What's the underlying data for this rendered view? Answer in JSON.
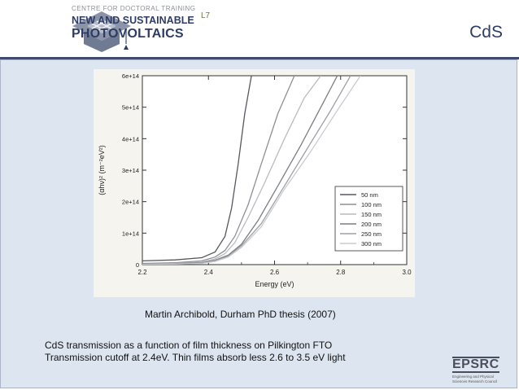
{
  "logo": {
    "line1": "CENTRE FOR DOCTORAL TRAINING",
    "line2": "NEW AND SUSTAINABLE",
    "line3": "PHOTOVOLTAICS"
  },
  "slide_number": "L7",
  "slide_title": "CdS",
  "caption": "Martin Archibold, Durham PhD thesis (2007)",
  "body_lines": [
    "CdS transmission as a function of film thickness on Pilkington FTO",
    "Transmission cutoff at 2.4eV. Thin films absorb less 2.6 to 3.5 eV light"
  ],
  "epsrc": {
    "name": "EPSRC",
    "subtitle": "Engineering and Physical Sciences Research Council"
  },
  "chart_data": {
    "type": "line",
    "xlabel": "Energy (eV)",
    "ylabel": "(αhν)² (m⁻²eV²)",
    "xlim": [
      2.2,
      3.0
    ],
    "ylim": [
      0,
      600000000000000.0
    ],
    "xticks": [
      2.2,
      2.4,
      2.6,
      2.8,
      3.0
    ],
    "xtick_labels": [
      "2.2",
      "2.4",
      "2.6",
      "2.8",
      "3.0"
    ],
    "yticks": [
      0,
      100000000000000.0,
      200000000000000.0,
      300000000000000.0,
      400000000000000.0,
      500000000000000.0,
      600000000000000.0
    ],
    "ytick_labels": [
      "0",
      "1e+14",
      "2e+14",
      "3e+14",
      "4e+14",
      "5e+14",
      "6e+14"
    ],
    "legend_position": "bottom-right",
    "series": [
      {
        "name": "50 nm",
        "color": "#55585e",
        "x": [
          2.2,
          2.3,
          2.38,
          2.42,
          2.45,
          2.47,
          2.49,
          2.51,
          2.53
        ],
        "y": [
          12000000000000.0,
          15000000000000.0,
          22000000000000.0,
          40000000000000.0,
          90000000000000.0,
          180000000000000.0,
          320000000000000.0,
          480000000000000.0,
          600000000000000.0
        ]
      },
      {
        "name": "100 nm",
        "color": "#8e9096",
        "x": [
          2.2,
          2.3,
          2.38,
          2.42,
          2.45,
          2.48,
          2.52,
          2.56,
          2.61,
          2.66
        ],
        "y": [
          4000000000000.0,
          6000000000000.0,
          12000000000000.0,
          24000000000000.0,
          45000000000000.0,
          90000000000000.0,
          190000000000000.0,
          320000000000000.0,
          480000000000000.0,
          600000000000000.0
        ]
      },
      {
        "name": "150 nm",
        "color": "#b9bbbf",
        "x": [
          2.2,
          2.3,
          2.38,
          2.42,
          2.45,
          2.48,
          2.52,
          2.57,
          2.63,
          2.69,
          2.74
        ],
        "y": [
          2000000000000.0,
          4000000000000.0,
          8000000000000.0,
          18000000000000.0,
          35000000000000.0,
          70000000000000.0,
          150000000000000.0,
          260000000000000.0,
          400000000000000.0,
          530000000000000.0,
          600000000000000.0
        ]
      },
      {
        "name": "200 nm",
        "color": "#7a7d82",
        "x": [
          2.2,
          2.3,
          2.38,
          2.42,
          2.46,
          2.5,
          2.55,
          2.61,
          2.68,
          2.74,
          2.79
        ],
        "y": [
          2000000000000.0,
          3000000000000.0,
          6000000000000.0,
          14000000000000.0,
          30000000000000.0,
          65000000000000.0,
          140000000000000.0,
          250000000000000.0,
          380000000000000.0,
          500000000000000.0,
          600000000000000.0
        ]
      },
      {
        "name": "250 nm",
        "color": "#9ea0a5",
        "x": [
          2.2,
          2.3,
          2.38,
          2.42,
          2.46,
          2.5,
          2.56,
          2.63,
          2.7,
          2.77,
          2.83
        ],
        "y": [
          1000000000000.0,
          2000000000000.0,
          5000000000000.0,
          12000000000000.0,
          27000000000000.0,
          60000000000000.0,
          130000000000000.0,
          250000000000000.0,
          370000000000000.0,
          490000000000000.0,
          600000000000000.0
        ]
      },
      {
        "name": "300 nm",
        "color": "#c9cbcf",
        "x": [
          2.2,
          2.3,
          2.38,
          2.42,
          2.46,
          2.5,
          2.56,
          2.63,
          2.71,
          2.79,
          2.86
        ],
        "y": [
          1000000000000.0,
          2000000000000.0,
          4000000000000.0,
          10000000000000.0,
          24000000000000.0,
          55000000000000.0,
          120000000000000.0,
          240000000000000.0,
          360000000000000.0,
          490000000000000.0,
          600000000000000.0
        ]
      }
    ]
  }
}
